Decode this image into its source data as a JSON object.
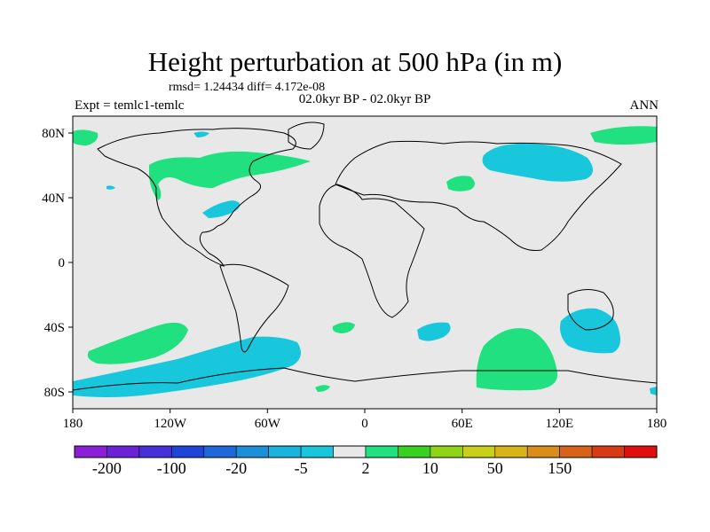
{
  "title": "Height perturbation at 500 hPa (in m)",
  "stats": "rmsd= 1.24434 diff= 4.172e-08",
  "period": "02.0kyr BP - 02.0kyr BP",
  "experiment": "Expt = temlc1-temlc",
  "season": "ANN",
  "axes": {
    "lon_ticks": [
      "180",
      "120W",
      "60W",
      "0",
      "60E",
      "120E",
      "180"
    ],
    "lat_ticks": [
      "80N",
      "40N",
      "0",
      "40S",
      "80S"
    ]
  },
  "colorbar": {
    "labels": [
      "-200",
      "-100",
      "-20",
      "-5",
      "2",
      "10",
      "50",
      "150"
    ],
    "colors": [
      "#8d1ed8",
      "#6b22d6",
      "#4830d8",
      "#1e44d8",
      "#1e68da",
      "#1b8fd8",
      "#1ab3de",
      "#19c7dc",
      "#e8e8e8",
      "#20e080",
      "#3ad020",
      "#90d418",
      "#c8d01a",
      "#d8b418",
      "#d88e18",
      "#d86318",
      "#d83a14",
      "#e20e0e"
    ]
  },
  "legend_colors": {
    "negative": "#19c7dc",
    "positive": "#20e080",
    "background": "#e8e8e8"
  }
}
